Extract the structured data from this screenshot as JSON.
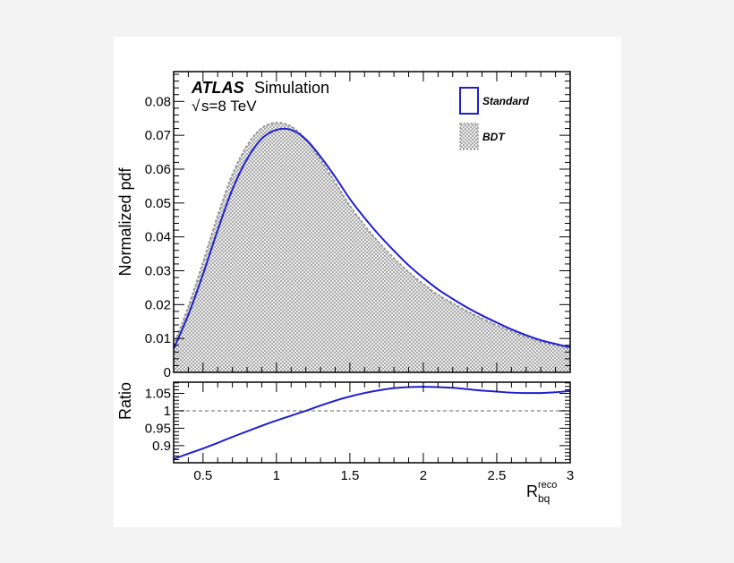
{
  "chart_data": [
    {
      "type": "area",
      "panel": "main",
      "title": "",
      "label_bold": "ATLAS",
      "label_rest": "Simulation",
      "energy_sqrt": "√",
      "energy_label": "s=8 TeV",
      "ylabel": "Normalized pdf",
      "xlim": [
        0.3,
        3.0
      ],
      "ylim": [
        0,
        0.0888
      ],
      "yticks": [
        "0",
        "0.01",
        "0.02",
        "0.03",
        "0.04",
        "0.05",
        "0.06",
        "0.07",
        "0.08"
      ],
      "ytick_values": [
        0,
        0.01,
        0.02,
        0.03,
        0.04,
        0.05,
        0.06,
        0.07,
        0.08
      ],
      "legend_placement": "top-right",
      "x": [
        0.3,
        0.4,
        0.5,
        0.6,
        0.7,
        0.8,
        0.9,
        1.0,
        1.1,
        1.2,
        1.3,
        1.4,
        1.5,
        1.6,
        1.7,
        1.8,
        1.9,
        2.0,
        2.1,
        2.2,
        2.3,
        2.4,
        2.5,
        2.6,
        2.7,
        2.8,
        2.9,
        3.0
      ],
      "series": [
        {
          "name": "Standard",
          "style": "line",
          "color": "#1f1fd0",
          "values": [
            0.0069,
            0.017,
            0.029,
            0.042,
            0.054,
            0.063,
            0.069,
            0.0716,
            0.0716,
            0.0688,
            0.0637,
            0.0577,
            0.0512,
            0.0456,
            0.0405,
            0.0359,
            0.0316,
            0.0279,
            0.0245,
            0.0217,
            0.0191,
            0.0168,
            0.0147,
            0.0127,
            0.011,
            0.0095,
            0.0084,
            0.0074
          ]
        },
        {
          "name": "BDT",
          "style": "hatched-fill",
          "color": "#999999",
          "values": [
            0.008,
            0.0194,
            0.0325,
            0.0463,
            0.0584,
            0.067,
            0.0721,
            0.0737,
            0.0726,
            0.0688,
            0.0628,
            0.0561,
            0.0492,
            0.0434,
            0.0382,
            0.0337,
            0.0296,
            0.0261,
            0.0229,
            0.0204,
            0.018,
            0.0159,
            0.0139,
            0.0121,
            0.0105,
            0.009,
            0.008,
            0.007
          ]
        }
      ]
    },
    {
      "type": "line",
      "panel": "ratio",
      "ylabel": "Ratio",
      "xlabel_main": "R",
      "xlabel_sub": "bq",
      "xlabel_sup": "reco",
      "xlim": [
        0.3,
        3.0
      ],
      "ylim": [
        0.851,
        1.082
      ],
      "xticks": [
        "0.5",
        "1",
        "1.5",
        "2",
        "2.5",
        "3"
      ],
      "xtick_values": [
        0.5,
        1,
        1.5,
        2,
        2.5,
        3
      ],
      "yticks": [
        "0.9",
        "0.95",
        "1",
        "1.05"
      ],
      "ytick_values": [
        0.9,
        0.95,
        1.0,
        1.05
      ],
      "reference_line": 1.0,
      "x": [
        0.3,
        0.4,
        0.5,
        0.6,
        0.7,
        0.8,
        0.9,
        1.0,
        1.1,
        1.2,
        1.3,
        1.4,
        1.5,
        1.6,
        1.7,
        1.8,
        1.9,
        2.0,
        2.1,
        2.2,
        2.3,
        2.4,
        2.5,
        2.6,
        2.7,
        2.8,
        2.9,
        3.0
      ],
      "series": [
        {
          "style": "line",
          "color": "#1f1fd0",
          "values": [
            0.862,
            0.877,
            0.892,
            0.908,
            0.925,
            0.941,
            0.957,
            0.972,
            0.986,
            1.0,
            1.015,
            1.029,
            1.041,
            1.051,
            1.059,
            1.065,
            1.068,
            1.069,
            1.068,
            1.066,
            1.062,
            1.058,
            1.055,
            1.052,
            1.051,
            1.051,
            1.053,
            1.057
          ]
        }
      ]
    }
  ]
}
